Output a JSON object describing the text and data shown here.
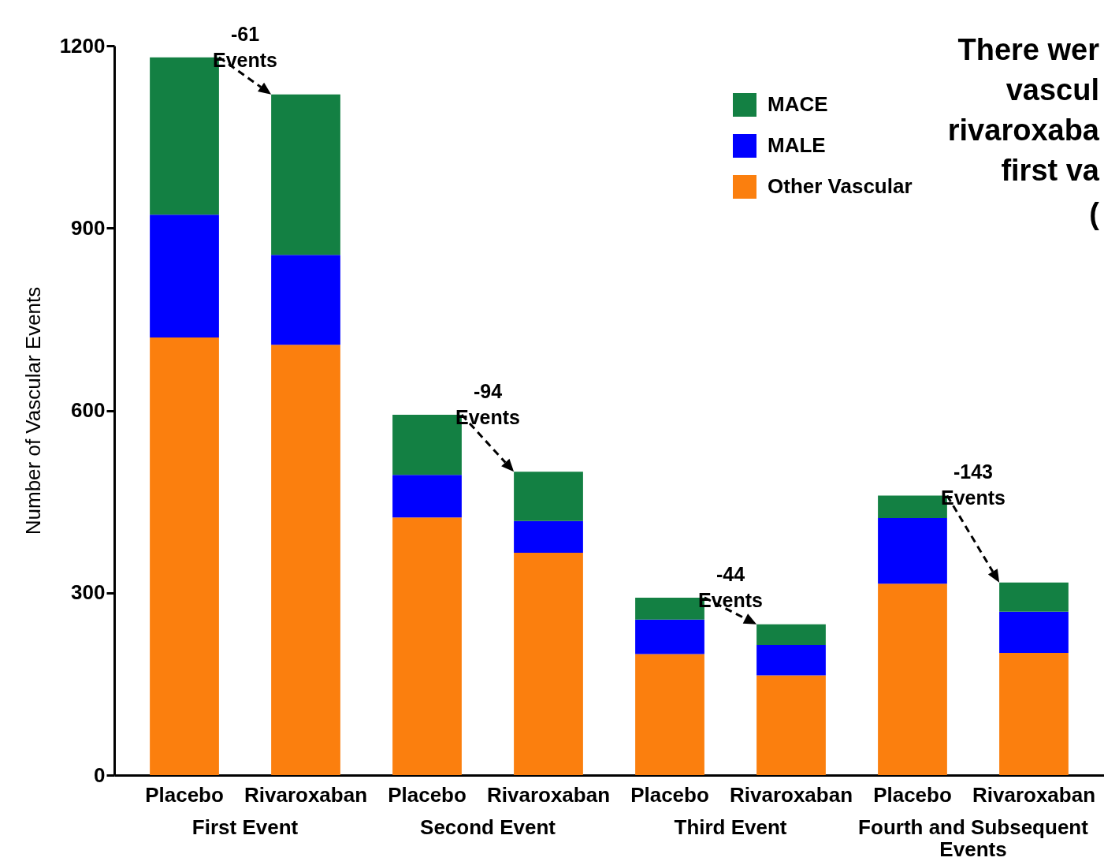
{
  "chart_data": {
    "type": "bar",
    "stacked": true,
    "ylabel": "Number of Vascular Events",
    "categories": [
      "Placebo",
      "Rivaroxaban",
      "Placebo",
      "Rivaroxaban",
      "Placebo",
      "Rivaroxaban",
      "Placebo",
      "Rivaroxaban"
    ],
    "series": [
      {
        "name": "Other Vascular",
        "color": "#fb7f0e",
        "values": [
          720,
          708,
          424,
          366,
          199,
          164,
          315,
          201
        ]
      },
      {
        "name": "MALE",
        "color": "#0000ff",
        "values": [
          202,
          148,
          70,
          52,
          57,
          50,
          108,
          68
        ]
      },
      {
        "name": "MACE",
        "color": "#138043",
        "values": [
          259,
          264,
          99,
          81,
          36,
          34,
          37,
          48
        ]
      }
    ],
    "ylim": [
      0,
      1200
    ],
    "yticks": [
      0,
      300,
      600,
      900,
      1200
    ],
    "grid": false,
    "legend": "top right",
    "annotations": [
      "First Event",
      "Second Event",
      "Third Event",
      "Fourth and Subsequent\nEvents",
      "-61\nEvents",
      "-94\nEvents",
      "-44\nEvents",
      "-143\nEvents",
      "There wer",
      "vascul",
      "rivaroxaba",
      "first va",
      "("
    ]
  }
}
